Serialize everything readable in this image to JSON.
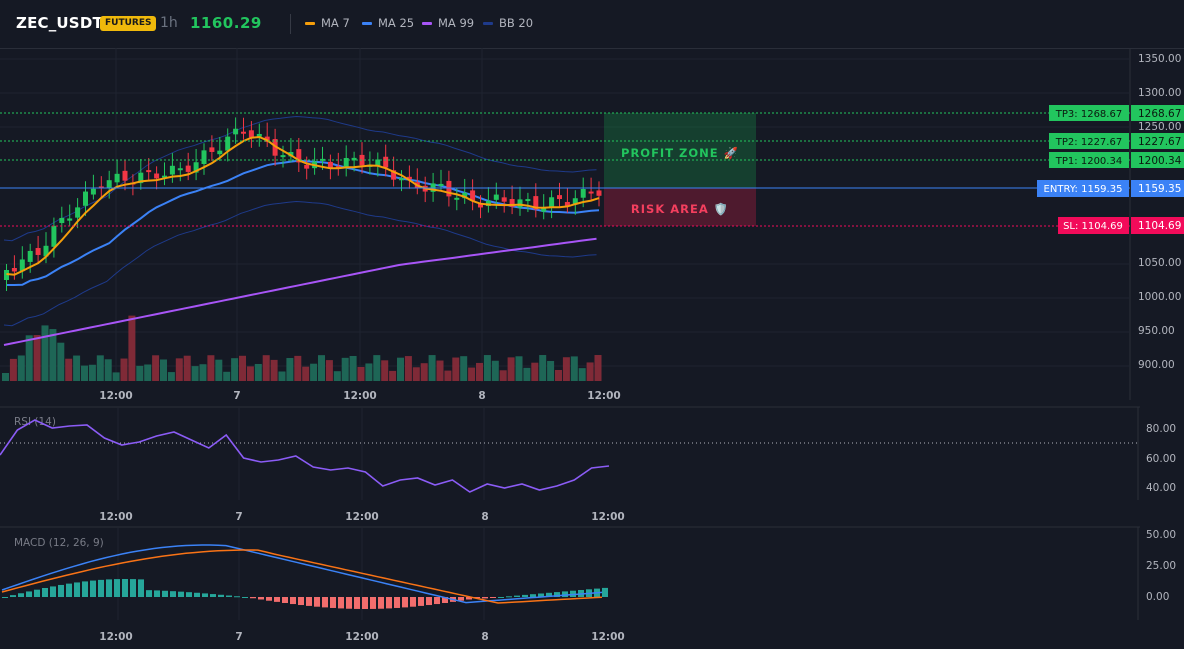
{
  "header": {
    "symbol": "ZEC_USDT",
    "badge": "FUTURES",
    "timeframe": "1h",
    "price": "1160.29"
  },
  "legend": [
    {
      "label": "MA 7",
      "color": "#f59e0b"
    },
    {
      "label": "MA 25",
      "color": "#3b82f6"
    },
    {
      "label": "MA 99",
      "color": "#a855f7"
    },
    {
      "label": "BB 20",
      "color": "#1e3a8a"
    }
  ],
  "price_axis": {
    "ticks": [
      "1350.00",
      "1300.00",
      "1250.00",
      "1050.00",
      "1000.00",
      "950.00",
      "900.00"
    ]
  },
  "time_axis": [
    "12:00",
    "7",
    "12:00",
    "8",
    "12:00"
  ],
  "levels": {
    "tp3": {
      "tag": "TP3: 1268.67",
      "price": "1268.67"
    },
    "tp2": {
      "tag": "TP2: 1227.67",
      "price": "1227.67"
    },
    "tp1": {
      "tag": "TP1: 1200.34",
      "price": "1200.34"
    },
    "entry": {
      "tag": "ENTRY: 1159.35",
      "price": "1159.35"
    },
    "sl": {
      "tag": "SL: 1104.69",
      "price": "1104.69"
    }
  },
  "zones": {
    "profit": "PROFIT ZONE 🚀",
    "risk": "RISK AREA 🛡️"
  },
  "rsi": {
    "label": "RSI (14)",
    "ticks": [
      "80.00",
      "60.00",
      "40.00"
    ],
    "overbought": 70
  },
  "macd": {
    "label": "MACD (12, 26, 9)",
    "ticks": [
      "50.00",
      "25.00",
      "0.00"
    ]
  },
  "colors": {
    "up": "#22c55e",
    "down": "#f23645",
    "entry": "#3b82f6",
    "sl": "#f20b5a",
    "tp": "#22c55e",
    "background": "#151924"
  }
}
